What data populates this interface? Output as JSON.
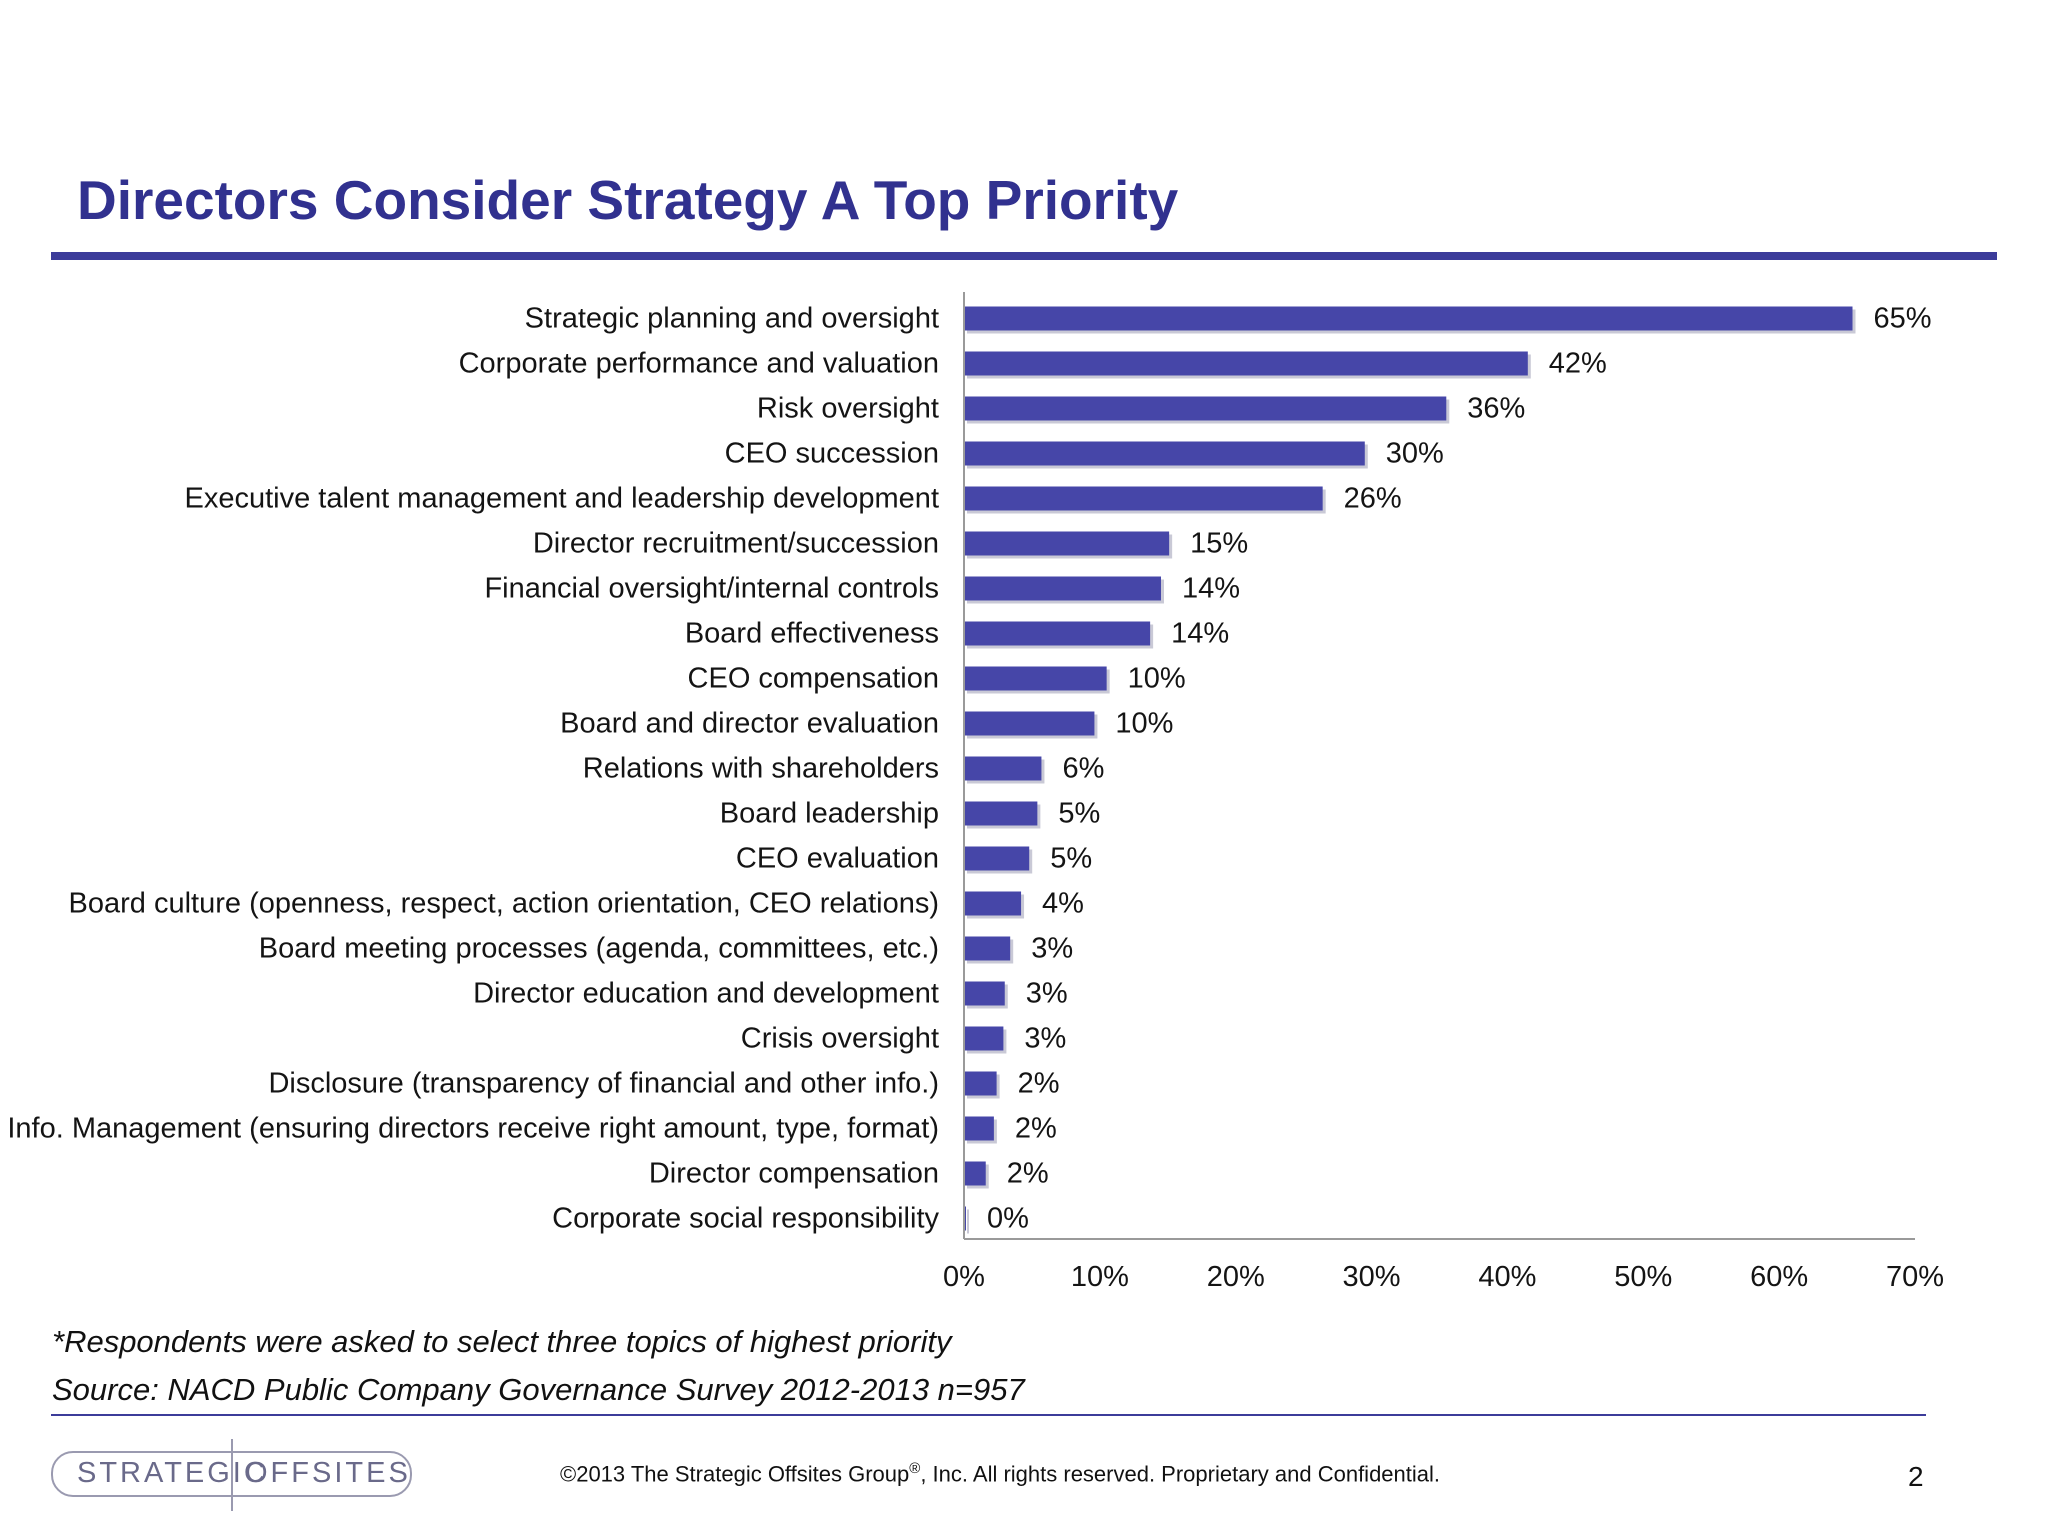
{
  "slide": {
    "title": "Directors Consider Strategy A Top Priority",
    "note": "*Respondents were asked to select three topics of highest priority",
    "source": "Source: NACD Public Company Governance Survey 2012-2013  n=957",
    "page_number": "2"
  },
  "footer": {
    "logo_left": "STRATEGIC",
    "logo_right": "OFFSITES",
    "copyright_prefix": "©2013 The Strategic Offsites Group",
    "copyright_mark": "®",
    "copyright_suffix": ", Inc.  All rights reserved. Proprietary and Confidential."
  },
  "colors": {
    "bar": "#4646a8",
    "title": "#31318f",
    "rule": "#3c3c9a"
  },
  "chart_data": {
    "type": "bar",
    "orientation": "horizontal",
    "title": "",
    "xlabel": "",
    "ylabel": "",
    "xlim": [
      0,
      70
    ],
    "xticks": [
      0,
      10,
      20,
      30,
      40,
      50,
      60,
      70
    ],
    "tick_suffix": "%",
    "grid": false,
    "categories": [
      "Strategic planning and oversight",
      "Corporate performance and valuation",
      "Risk oversight",
      "CEO succession",
      "Executive talent management and leadership development",
      "Director recruitment/succession",
      "Financial oversight/internal controls",
      "Board effectiveness",
      "CEO compensation",
      "Board and director evaluation",
      "Relations with shareholders",
      "Board leadership",
      "CEO evaluation",
      "Board culture (openness, respect, action orientation, CEO relations)",
      "Board meeting processes (agenda, committees, etc.)",
      "Director education and development",
      "Crisis oversight",
      "Disclosure (transparency of financial and other info.)",
      "Info. Management (ensuring directors receive right amount, type, format)",
      "Director compensation",
      "Corporate social responsibility"
    ],
    "values": [
      65.4,
      41.5,
      35.5,
      29.5,
      26.4,
      15.1,
      14.5,
      13.7,
      10.5,
      9.6,
      5.7,
      5.4,
      4.8,
      4.2,
      3.4,
      3.0,
      2.9,
      2.4,
      2.2,
      1.6,
      0.1
    ],
    "data_labels": [
      "65%",
      "42%",
      "36%",
      "30%",
      "26%",
      "15%",
      "14%",
      "14%",
      "10%",
      "10%",
      "6%",
      "5%",
      "5%",
      "4%",
      "3%",
      "3%",
      "3%",
      "2%",
      "2%",
      "2%",
      "0%"
    ]
  }
}
